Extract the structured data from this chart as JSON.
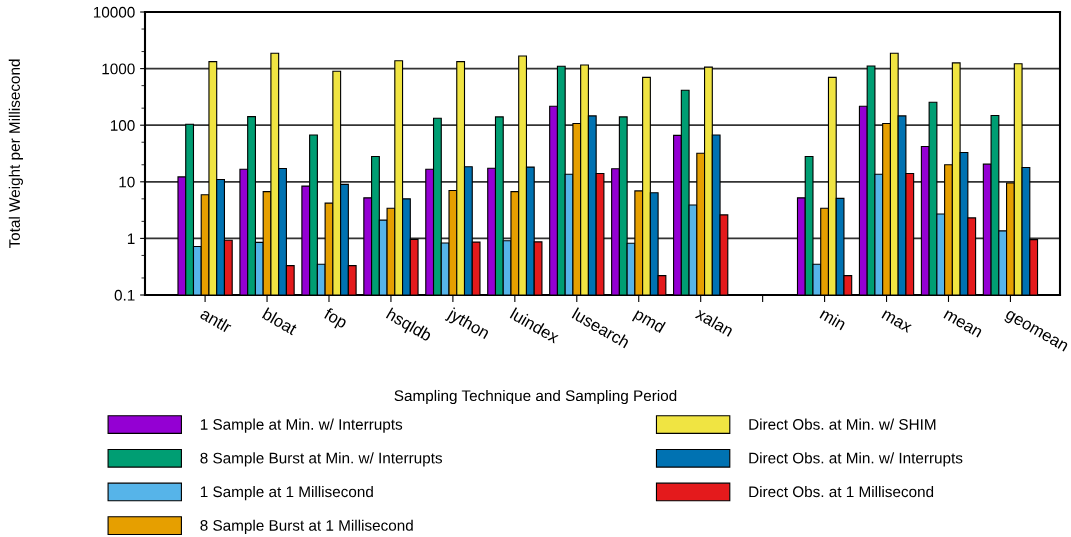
{
  "chart_data": {
    "type": "bar",
    "xlabel": "Sampling Technique and Sampling Period",
    "ylabel": "Total Weight per Millisecond",
    "categories": [
      "antlr",
      "bloat",
      "fop",
      "hsqldb",
      "jython",
      "luindex",
      "lusearch",
      "pmd",
      "xalan",
      null,
      "min",
      "max",
      "mean",
      "geomean"
    ],
    "series": [
      {
        "name": "1 Sample at Min. w/ Interrupts",
        "color": "#9400d3",
        "values": [
          12.2,
          16.7,
          8.4,
          5.2,
          16.7,
          17.4,
          216,
          17,
          66,
          null,
          5.2,
          216,
          42,
          20.5
        ]
      },
      {
        "name": "8 Sample Burst at Min. w/ Interrupts",
        "color": "#009e73",
        "values": [
          104,
          142,
          67,
          28,
          133,
          140,
          1100,
          140,
          415,
          null,
          28,
          1110,
          255,
          148
        ]
      },
      {
        "name": "1 Sample at 1 Millisecond",
        "color": "#56b4e9",
        "values": [
          0.72,
          0.85,
          0.35,
          2.1,
          0.83,
          0.91,
          13.6,
          0.82,
          3.9,
          null,
          0.35,
          13.6,
          2.7,
          1.36
        ]
      },
      {
        "name": "8 Sample Burst at 1 Millisecond",
        "color": "#e69f00",
        "values": [
          5.9,
          6.7,
          4.2,
          3.4,
          7.0,
          6.7,
          107,
          6.9,
          32,
          null,
          3.4,
          107,
          20,
          9.5
        ]
      },
      {
        "name": "Direct Obs. at Min. w/ SHIM",
        "color": "#f0e442",
        "values": [
          1330,
          1870,
          900,
          1380,
          1330,
          1670,
          1160,
          700,
          1060,
          null,
          700,
          1870,
          1260,
          1220
        ]
      },
      {
        "name": "Direct Obs. at Min. w/ Interrupts",
        "color": "#0072b2",
        "values": [
          11,
          17.2,
          9,
          5.0,
          18.4,
          18.2,
          146,
          6.4,
          67,
          null,
          5.1,
          146,
          33,
          17.9
        ]
      },
      {
        "name": "Direct Obs. at 1 Millisecond",
        "color": "#e41a1c",
        "values": [
          0.93,
          0.33,
          0.33,
          0.96,
          0.86,
          0.87,
          14,
          0.22,
          2.6,
          null,
          0.22,
          14,
          2.3,
          0.95
        ]
      }
    ],
    "log": true,
    "ylim": [
      0.1,
      10000
    ],
    "yticks": [
      0.1,
      {
        "value": 0.2,
        "label": null
      },
      {
        "value": 0.5,
        "label": null
      },
      1,
      {
        "value": 2,
        "label": null
      },
      {
        "value": 5,
        "label": null
      },
      10,
      {
        "value": 20,
        "label": null
      },
      {
        "value": 50,
        "label": null
      },
      100,
      {
        "value": 200,
        "label": null
      },
      {
        "value": 500,
        "label": null
      },
      1000,
      {
        "value": 2000,
        "label": null
      },
      {
        "value": 5000,
        "label": null
      },
      10000
    ],
    "grid": "y",
    "legend": "bottom"
  }
}
